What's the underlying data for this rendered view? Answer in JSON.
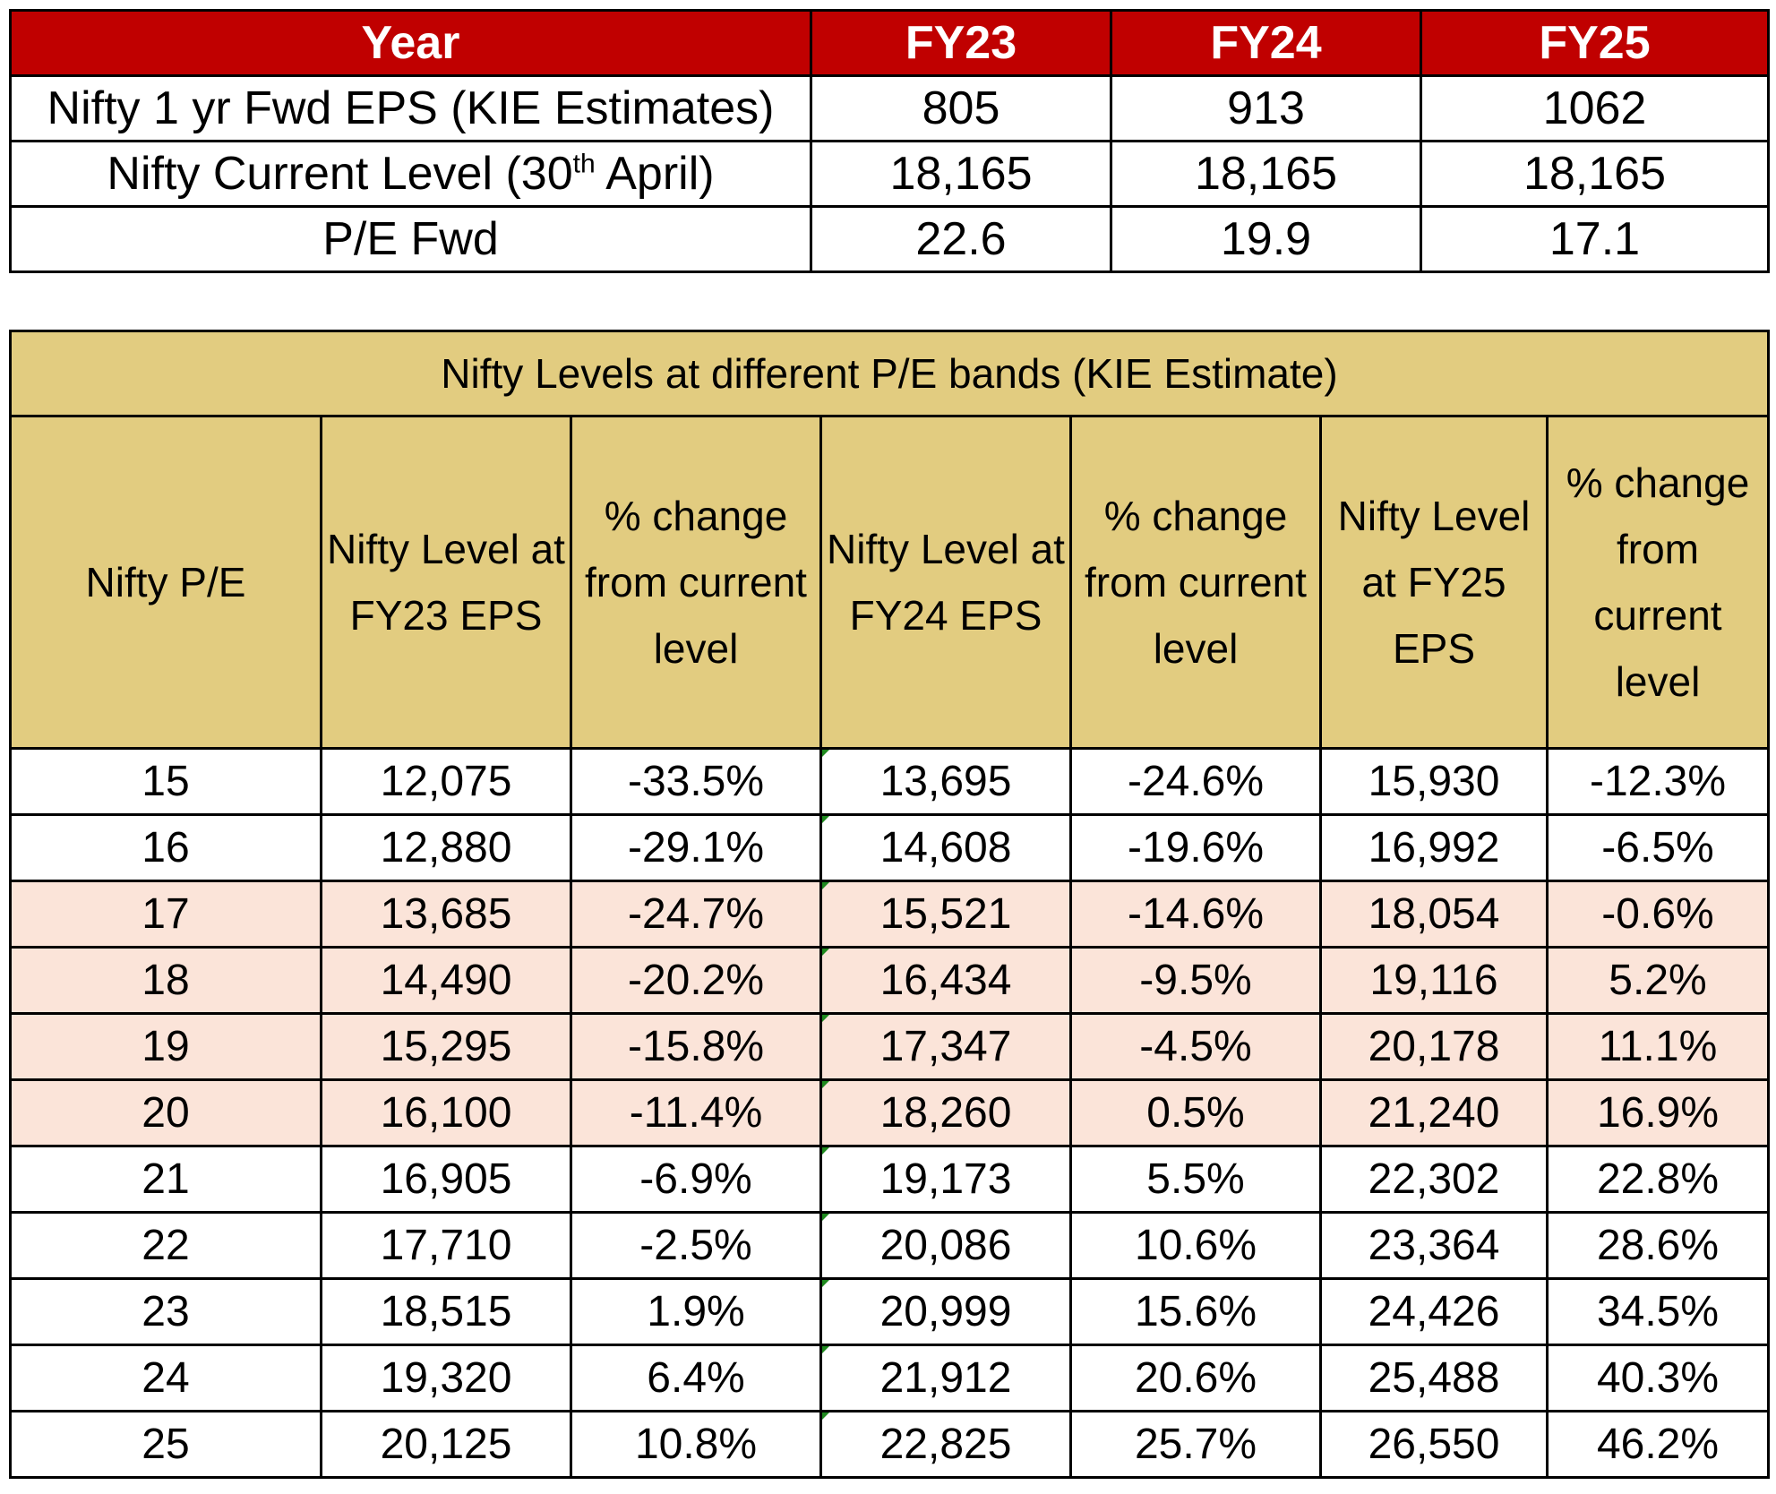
{
  "summary": {
    "headers": [
      "Year",
      "FY23",
      "FY24",
      "FY25"
    ],
    "rows": [
      {
        "label": "Nifty 1 yr Fwd EPS (KIE Estimates)",
        "values": [
          "805",
          "913",
          "1062"
        ]
      },
      {
        "label_pre": "Nifty Current Level (30",
        "label_sup": "th",
        "label_post": " April)",
        "values": [
          "18,165",
          "18,165",
          "18,165"
        ]
      },
      {
        "label": "P/E Fwd",
        "values": [
          "22.6",
          "19.9",
          "17.1"
        ]
      }
    ]
  },
  "bands": {
    "title": "Nifty Levels at different P/E bands (KIE Estimate)",
    "headers": [
      "Nifty P/E",
      "Nifty Level at FY23 EPS",
      "% change from current level",
      "Nifty Level at FY24 EPS",
      "% change from current level",
      "Nifty Level at FY25 EPS",
      "% change from current level"
    ],
    "highlight_color": "#fbe4d9",
    "rows": [
      [
        "15",
        "12,075",
        "-33.5%",
        "13,695",
        "-24.6%",
        "15,930",
        "-12.3%"
      ],
      [
        "16",
        "12,880",
        "-29.1%",
        "14,608",
        "-19.6%",
        "16,992",
        "-6.5%"
      ],
      [
        "17",
        "13,685",
        "-24.7%",
        "15,521",
        "-14.6%",
        "18,054",
        "-0.6%"
      ],
      [
        "18",
        "14,490",
        "-20.2%",
        "16,434",
        "-9.5%",
        "19,116",
        "5.2%"
      ],
      [
        "19",
        "15,295",
        "-15.8%",
        "17,347",
        "-4.5%",
        "20,178",
        "11.1%"
      ],
      [
        "20",
        "16,100",
        "-11.4%",
        "18,260",
        "0.5%",
        "21,240",
        "16.9%"
      ],
      [
        "21",
        "16,905",
        "-6.9%",
        "19,173",
        "5.5%",
        "22,302",
        "22.8%"
      ],
      [
        "22",
        "17,710",
        "-2.5%",
        "20,086",
        "10.6%",
        "23,364",
        "28.6%"
      ],
      [
        "23",
        "18,515",
        "1.9%",
        "20,999",
        "15.6%",
        "24,426",
        "34.5%"
      ],
      [
        "24",
        "19,320",
        "6.4%",
        "21,912",
        "20.6%",
        "25,488",
        "40.3%"
      ],
      [
        "25",
        "20,125",
        "10.8%",
        "22,825",
        "25.7%",
        "26,550",
        "46.2%"
      ]
    ],
    "highlighted_rows": [
      2,
      3,
      4,
      5
    ]
  },
  "colors": {
    "summary_header_bg": "#c00000",
    "band_header_bg": "#e2cc80"
  }
}
